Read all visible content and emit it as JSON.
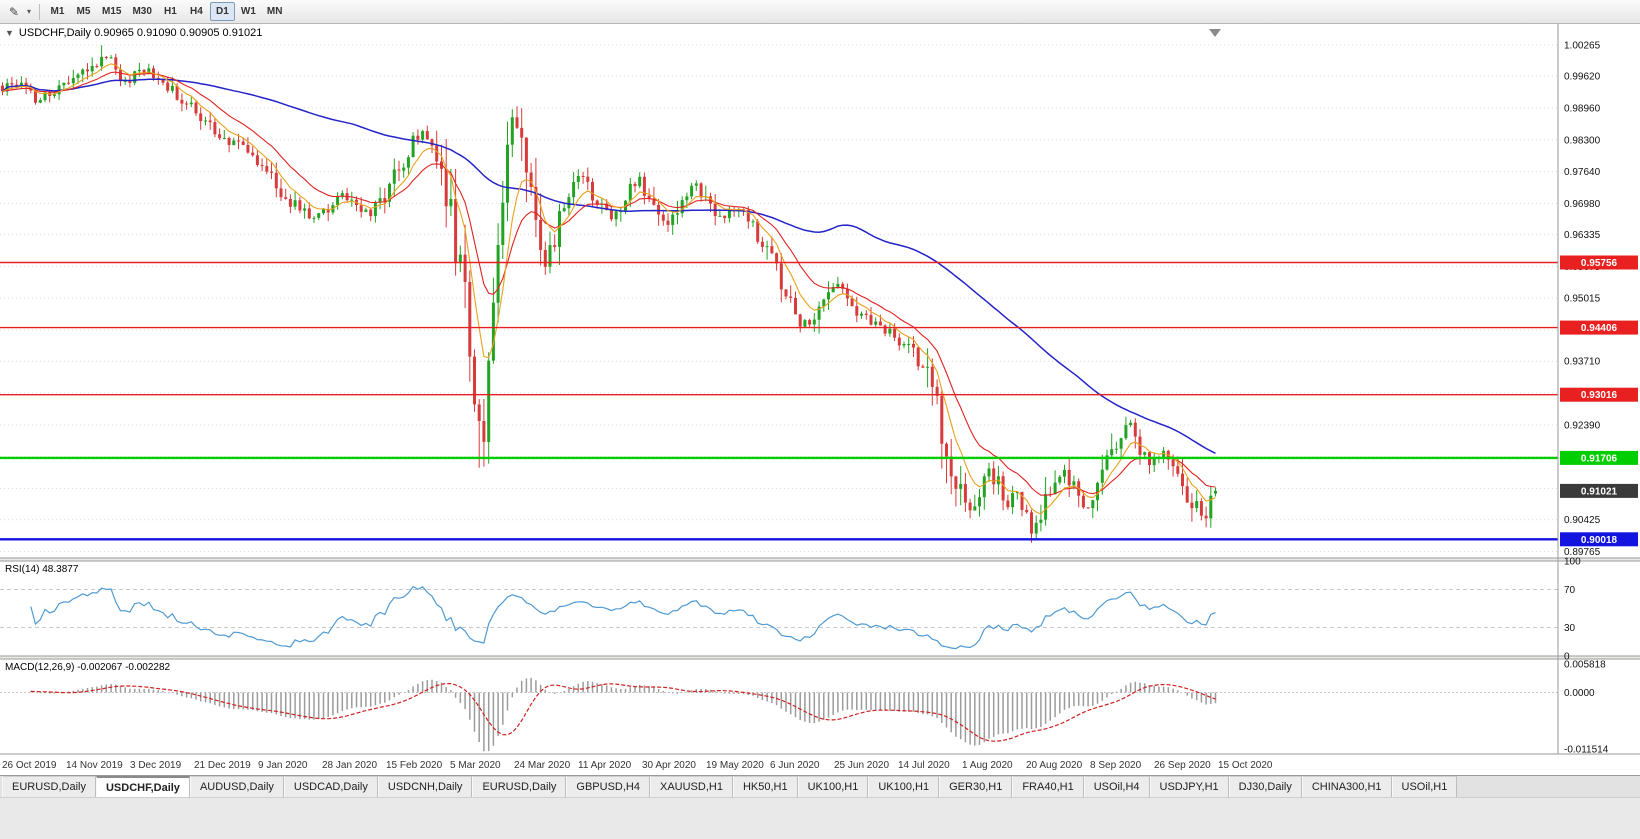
{
  "toolbar": {
    "draw_tool_icon": "✎",
    "dropdown_caret": "▾",
    "timeframes": [
      "M1",
      "M5",
      "M15",
      "M30",
      "H1",
      "H4",
      "D1",
      "W1",
      "MN"
    ],
    "active_timeframe": "D1"
  },
  "header": {
    "collapse_arrow": "▼",
    "symbol_line": "USDCHF,Daily 0.90965 0.91090 0.90905 0.91021"
  },
  "chart_data": {
    "type": "candlestick",
    "symbol": "USDCHF",
    "period": "Daily",
    "ohlc": {
      "open": 0.90965,
      "high": 0.9109,
      "low": 0.90905,
      "close": 0.91021
    },
    "seed": 1402,
    "count": 258,
    "candle_colors": {
      "up": "#23a323",
      "down": "#d73b3b"
    },
    "anchors": [
      [
        0,
        0.9935
      ],
      [
        4,
        0.9952
      ],
      [
        7,
        0.9908
      ],
      [
        10,
        0.9925
      ],
      [
        14,
        0.9942
      ],
      [
        18,
        0.9975
      ],
      [
        21,
        0.9998
      ],
      [
        23,
        0.9988
      ],
      [
        25,
        0.9945
      ],
      [
        28,
        0.9962
      ],
      [
        31,
        0.9976
      ],
      [
        34,
        0.9952
      ],
      [
        38,
        0.9915
      ],
      [
        42,
        0.9878
      ],
      [
        46,
        0.9845
      ],
      [
        50,
        0.9815
      ],
      [
        54,
        0.9786
      ],
      [
        57,
        0.975
      ],
      [
        60,
        0.9712
      ],
      [
        63,
        0.9685
      ],
      [
        66,
        0.9662
      ],
      [
        69,
        0.969
      ],
      [
        72,
        0.9712
      ],
      [
        75,
        0.9694
      ],
      [
        78,
        0.9672
      ],
      [
        81,
        0.9718
      ],
      [
        84,
        0.9772
      ],
      [
        87,
        0.9825
      ],
      [
        89,
        0.9838
      ],
      [
        91,
        0.9803
      ],
      [
        93,
        0.975
      ],
      [
        95,
        0.9663
      ],
      [
        97,
        0.9578
      ],
      [
        99,
        0.9402
      ],
      [
        101,
        0.9225
      ],
      [
        102,
        0.9232
      ],
      [
        103,
        0.9332
      ],
      [
        104,
        0.9455
      ],
      [
        105,
        0.96
      ],
      [
        106,
        0.9712
      ],
      [
        107,
        0.979
      ],
      [
        108,
        0.9843
      ],
      [
        109,
        0.9857
      ],
      [
        110,
        0.9836
      ],
      [
        111,
        0.978
      ],
      [
        112,
        0.971
      ],
      [
        113,
        0.9656
      ],
      [
        114,
        0.9602
      ],
      [
        115,
        0.9572
      ],
      [
        117,
        0.963
      ],
      [
        119,
        0.969
      ],
      [
        121,
        0.974
      ],
      [
        123,
        0.9758
      ],
      [
        125,
        0.972
      ],
      [
        127,
        0.9684
      ],
      [
        129,
        0.9668
      ],
      [
        131,
        0.9696
      ],
      [
        133,
        0.9728
      ],
      [
        135,
        0.9746
      ],
      [
        137,
        0.971
      ],
      [
        139,
        0.9672
      ],
      [
        141,
        0.9656
      ],
      [
        143,
        0.9692
      ],
      [
        145,
        0.9722
      ],
      [
        147,
        0.9736
      ],
      [
        149,
        0.971
      ],
      [
        151,
        0.9682
      ],
      [
        153,
        0.9668
      ],
      [
        155,
        0.969
      ],
      [
        157,
        0.9674
      ],
      [
        159,
        0.9646
      ],
      [
        161,
        0.9624
      ],
      [
        163,
        0.9578
      ],
      [
        165,
        0.9534
      ],
      [
        167,
        0.9494
      ],
      [
        169,
        0.9458
      ],
      [
        171,
        0.9444
      ],
      [
        173,
        0.9484
      ],
      [
        175,
        0.9522
      ],
      [
        177,
        0.9536
      ],
      [
        179,
        0.9504
      ],
      [
        181,
        0.9478
      ],
      [
        183,
        0.9462
      ],
      [
        185,
        0.9448
      ],
      [
        187,
        0.9436
      ],
      [
        189,
        0.9422
      ],
      [
        191,
        0.9408
      ],
      [
        193,
        0.9392
      ],
      [
        195,
        0.9364
      ],
      [
        197,
        0.9306
      ],
      [
        199,
        0.923
      ],
      [
        201,
        0.915
      ],
      [
        203,
        0.9092
      ],
      [
        205,
        0.906
      ],
      [
        207,
        0.9102
      ],
      [
        209,
        0.9142
      ],
      [
        211,
        0.9112
      ],
      [
        213,
        0.9078
      ],
      [
        215,
        0.9104
      ],
      [
        217,
        0.9062
      ],
      [
        218,
        0.9014
      ],
      [
        219,
        0.903
      ],
      [
        221,
        0.9072
      ],
      [
        223,
        0.9112
      ],
      [
        225,
        0.9142
      ],
      [
        227,
        0.9108
      ],
      [
        229,
        0.9068
      ],
      [
        231,
        0.9092
      ],
      [
        233,
        0.9128
      ],
      [
        235,
        0.9172
      ],
      [
        237,
        0.9222
      ],
      [
        238,
        0.924
      ],
      [
        239,
        0.923
      ],
      [
        241,
        0.9196
      ],
      [
        243,
        0.9168
      ],
      [
        245,
        0.9172
      ],
      [
        247,
        0.9178
      ],
      [
        249,
        0.9146
      ],
      [
        251,
        0.9098
      ],
      [
        253,
        0.9062
      ],
      [
        255,
        0.9048
      ],
      [
        256,
        0.9078
      ],
      [
        257,
        0.9102
      ]
    ],
    "key_points": [
      {
        "i": 21,
        "h": 1.0026
      },
      {
        "i": 88,
        "h": 0.9852
      },
      {
        "i": 101,
        "l": 0.915
      },
      {
        "i": 109,
        "h": 0.9897
      },
      {
        "i": 205,
        "l": 0.9045
      },
      {
        "i": 218,
        "l": 0.8998
      },
      {
        "i": 238,
        "h": 0.9256
      },
      {
        "i": 255,
        "l": 0.904
      }
    ],
    "last_candle": {
      "o": 0.90965,
      "h": 0.9109,
      "l": 0.90905,
      "c": 0.91021
    },
    "volatility": {
      "base": 0.0013,
      "slope_mult": 1.2,
      "boost_start": 94,
      "boost_end": 116,
      "boost_mult": 1.8,
      "late_start": 196,
      "late_mult": 1.25,
      "cap": 0.0085
    },
    "price_axis": {
      "max": 1.007,
      "min": 0.8963,
      "grid_labels": [
        "1.00265",
        "0.99620",
        "0.98960",
        "0.98300",
        "0.97640",
        "0.96980",
        "0.96335",
        "0.95675",
        "0.95015",
        "0.94355",
        "0.93710",
        "0.93050",
        "0.92390",
        "0.91730",
        "0.91070",
        "0.90425",
        "0.89765"
      ]
    },
    "hlines": [
      {
        "label": "0.95756",
        "price": 0.95756,
        "color": "#e82020",
        "width": 1.4
      },
      {
        "label": "0.94406",
        "price": 0.94406,
        "color": "#e82020",
        "width": 1.4
      },
      {
        "label": "0.93016",
        "price": 0.93016,
        "color": "#e82020",
        "width": 1.4
      },
      {
        "label": "0.91706",
        "price": 0.91706,
        "color": "#00ce00",
        "width": 2.4
      },
      {
        "label": "0.90018",
        "price": 0.90018,
        "color": "#1414e0",
        "width": 2.4
      }
    ],
    "current_price_tag": {
      "label": "0.91021",
      "price": 0.91021,
      "color": "#3a3a3a"
    },
    "moving_averages": [
      {
        "name": "fast",
        "type": "ema",
        "period": 7,
        "color": "#e8a21c",
        "width": 1.1
      },
      {
        "name": "medium",
        "type": "ema",
        "period": 16,
        "color": "#e02222",
        "width": 1.1
      },
      {
        "name": "slow",
        "type": "sma",
        "period": 75,
        "color": "#2424c8",
        "width": 1.5
      }
    ],
    "rsi": {
      "label": "RSI(14) 48.3877",
      "period": 14,
      "current": 48.3877,
      "axis_labels": [
        "100",
        "70",
        "30",
        "0"
      ],
      "levels": [
        70,
        30
      ],
      "color": "#4f9ad2"
    },
    "macd": {
      "label": "MACD(12,26,9) -0.002067 -0.002282",
      "fast": 12,
      "slow": 26,
      "signal": 9,
      "value": -0.002067,
      "signal_value": -0.002282,
      "axis_labels": [
        "0.005818",
        "0.0000",
        "-0.011514"
      ],
      "range": {
        "max": 0.0068,
        "min": -0.0125
      },
      "histogram_color": "#9c9c9c",
      "signal_color": "#d02020"
    },
    "dates": [
      "26 Oct 2019",
      "14 Nov 2019",
      "3 Dec 2019",
      "21 Dec 2019",
      "9 Jan 2020",
      "28 Jan 2020",
      "15 Feb 2020",
      "5 Mar 2020",
      "24 Mar 2020",
      "11 Apr 2020",
      "30 Apr 2020",
      "19 May 2020",
      "6 Jun 2020",
      "25 Jun 2020",
      "14 Jul 2020",
      "1 Aug 2020",
      "20 Aug 2020",
      "8 Sep 2020",
      "26 Sep 2020",
      "15 Oct 2020"
    ]
  },
  "tabs": {
    "active_index": 1,
    "items": [
      "EURUSD,Daily",
      "USDCHF,Daily",
      "AUDUSD,Daily",
      "USDCAD,Daily",
      "USDCNH,Daily",
      "EURUSD,Daily",
      "GBPUSD,H4",
      "XAUUSD,H1",
      "HK50,H1",
      "UK100,H1",
      "UK100,H1",
      "GER30,H1",
      "FRA40,H1",
      "USOil,H4",
      "USDJPY,H1",
      "DJ30,Daily",
      "CHINA300,H1",
      "USOil,H1"
    ]
  }
}
